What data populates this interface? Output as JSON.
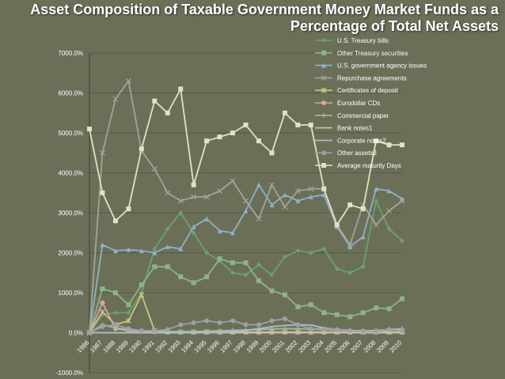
{
  "title_line1": "Asset Composition of Taxable Government Money Market Funds as a",
  "title_line2": "Percentage of Total Net Assets",
  "colors": {
    "background": "#6b6f58",
    "grid": "#55593f",
    "axis": "#3e4230"
  },
  "chart_data": {
    "type": "line",
    "title": "Asset Composition of Taxable Government Money Market Funds as a Percentage of Total Net Assets",
    "xlabel": "",
    "ylabel": "",
    "ylim": [
      -1000,
      7000
    ],
    "yticks": [
      "-1000.0%",
      "0.0%",
      "1000.0%",
      "2000.0%",
      "3000.0%",
      "4000.0%",
      "5000.0%",
      "6000.0%",
      "7000.0%"
    ],
    "categories": [
      "1986",
      "1987",
      "1988",
      "1989",
      "1990",
      "1991",
      "1992",
      "1993",
      "1994",
      "1995",
      "1996",
      "1997",
      "1998",
      "1999",
      "2000",
      "2001",
      "2002",
      "2003",
      "2004",
      "2005",
      "2006",
      "2007",
      "2008",
      "2009",
      "2010"
    ],
    "grid": true,
    "legend_placement": "top-right",
    "series": [
      {
        "name": "U.S. Treasury bills",
        "color": "#6aa36a",
        "marker": "diamond",
        "values": [
          0,
          450,
          500,
          500,
          1000,
          2100,
          2600,
          3000,
          2500,
          2000,
          1800,
          1500,
          1450,
          1700,
          1450,
          1900,
          2050,
          2000,
          2100,
          1600,
          1500,
          1650,
          3300,
          2600,
          2300
        ]
      },
      {
        "name": "Other Treasury securities",
        "color": "#8cb585",
        "marker": "square",
        "values": [
          0,
          1100,
          1000,
          700,
          1200,
          1650,
          1650,
          1400,
          1250,
          1400,
          1850,
          1750,
          1750,
          1300,
          1050,
          950,
          650,
          700,
          500,
          450,
          400,
          500,
          620,
          600,
          850
        ]
      },
      {
        "name": "U.S. government agency issues",
        "color": "#8fb1c8",
        "marker": "triangle",
        "values": [
          0,
          2200,
          2050,
          2080,
          2050,
          2000,
          2150,
          2100,
          2650,
          2850,
          2550,
          2500,
          3050,
          3700,
          3200,
          3450,
          3300,
          3400,
          3450,
          2650,
          2150,
          2400,
          3600,
          3550,
          3350
        ]
      },
      {
        "name": "Repurchase agreements",
        "color": "#a3a39a",
        "marker": "x",
        "values": [
          0,
          4500,
          5850,
          6300,
          4550,
          4100,
          3500,
          3300,
          3400,
          3400,
          3550,
          3800,
          3300,
          2850,
          3700,
          3150,
          3550,
          3600,
          3600,
          2700,
          2200,
          3200,
          2700,
          3050,
          3300
        ]
      },
      {
        "name": "Certificates  of deposit",
        "color": "#c9c57f",
        "marker": "star",
        "values": [
          0,
          520,
          200,
          300,
          950,
          50,
          30,
          20,
          20,
          20,
          20,
          20,
          20,
          20,
          20,
          20,
          20,
          20,
          20,
          20,
          20,
          20,
          20,
          20,
          20
        ]
      },
      {
        "name": "Eurodollar CDs",
        "color": "#d9a3a3",
        "marker": "circle",
        "values": [
          0,
          750,
          100,
          50,
          30,
          20,
          10,
          10,
          10,
          10,
          10,
          10,
          10,
          10,
          10,
          10,
          10,
          10,
          10,
          10,
          10,
          10,
          10,
          10,
          10
        ]
      },
      {
        "name": "Commercial paper",
        "color": "#a0be9a",
        "marker": "plus",
        "values": [
          0,
          200,
          120,
          80,
          50,
          40,
          30,
          30,
          30,
          40,
          50,
          60,
          70,
          80,
          90,
          100,
          100,
          90,
          80,
          70,
          60,
          50,
          60,
          80,
          100
        ]
      },
      {
        "name": "Bank notes1",
        "color": "#c3c7b6",
        "marker": "dash",
        "values": [
          0,
          0,
          0,
          0,
          0,
          0,
          0,
          0,
          0,
          0,
          0,
          0,
          0,
          0,
          0,
          0,
          0,
          0,
          0,
          0,
          0,
          0,
          0,
          0,
          0
        ]
      },
      {
        "name": "Corporate notes2",
        "color": "#a8bfcf",
        "marker": "dash",
        "values": [
          0,
          0,
          0,
          0,
          0,
          0,
          0,
          0,
          0,
          0,
          10,
          30,
          60,
          100,
          150,
          180,
          200,
          190,
          120,
          80,
          60,
          40,
          30,
          60,
          80
        ]
      },
      {
        "name": "Other assets3",
        "color": "#9e9fa8",
        "marker": "circle",
        "values": [
          0,
          150,
          200,
          100,
          50,
          50,
          80,
          200,
          250,
          300,
          250,
          300,
          200,
          200,
          300,
          350,
          200,
          100,
          100,
          80,
          50,
          30,
          30,
          80,
          50
        ]
      },
      {
        "name": "Average maturity Days",
        "color": "#e6e0c2",
        "marker": "square",
        "values": [
          5100,
          3500,
          2800,
          3100,
          4600,
          5800,
          5500,
          6100,
          3700,
          4800,
          4900,
          5000,
          5200,
          4800,
          4500,
          5500,
          5200,
          5200,
          3600,
          2700,
          3200,
          3100,
          4800,
          4700,
          4700
        ]
      }
    ]
  }
}
